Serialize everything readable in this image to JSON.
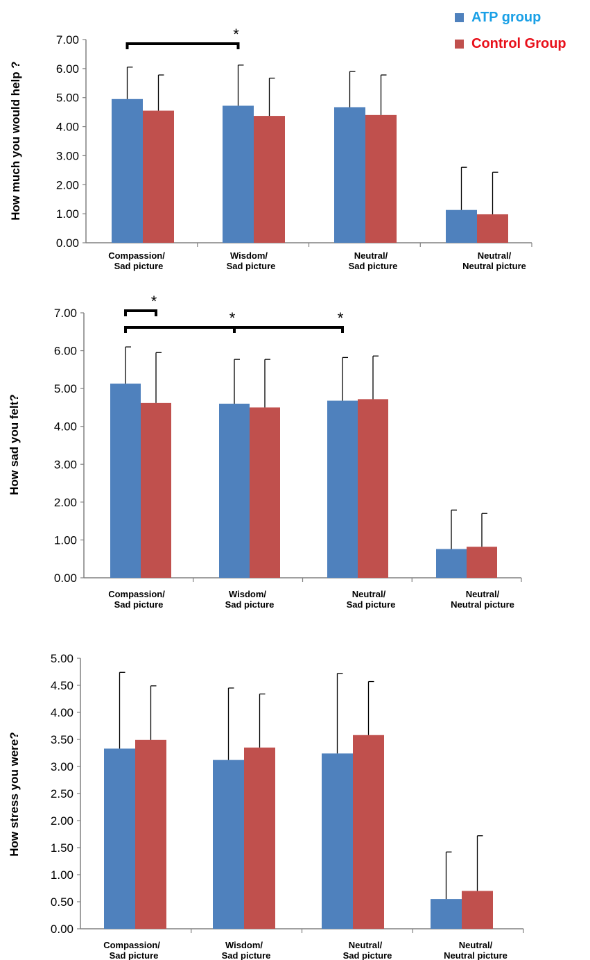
{
  "legend": {
    "items": [
      {
        "label": "ATP group",
        "color": "#4f81bd",
        "text_color": "#1aa0e6"
      },
      {
        "label": "Control Group",
        "color": "#c0504d",
        "text_color": "#e8101a"
      }
    ]
  },
  "chart_data": [
    {
      "type": "bar",
      "title": "",
      "xlabel": "",
      "ylabel": "How much you would help ?",
      "ylim": [
        0,
        7
      ],
      "yticks": [
        "0.00",
        "1.00",
        "2.00",
        "3.00",
        "4.00",
        "5.00",
        "6.00",
        "7.00"
      ],
      "categories": [
        [
          "Compassion/",
          "Sad picture"
        ],
        [
          "Wisdom/",
          "Sad picture"
        ],
        [
          "Neutral/",
          "Sad picture"
        ],
        [
          "Neutral/",
          "Neutral picture"
        ]
      ],
      "series": [
        {
          "name": "ATP group",
          "values": [
            4.95,
            4.72,
            4.67,
            1.13
          ],
          "errors": [
            1.1,
            1.4,
            1.23,
            1.47
          ]
        },
        {
          "name": "Control Group",
          "values": [
            4.55,
            4.37,
            4.4,
            0.98
          ],
          "errors": [
            1.23,
            1.3,
            1.38,
            1.45
          ]
        }
      ],
      "significance": [
        {
          "from_category": 0,
          "from_series": 0,
          "to_category": 1,
          "to_series": 0,
          "label": "*"
        }
      ]
    },
    {
      "type": "bar",
      "title": "",
      "xlabel": "",
      "ylabel": "How sad you felt?",
      "ylim": [
        0,
        7
      ],
      "yticks": [
        "0.00",
        "1.00",
        "2.00",
        "3.00",
        "4.00",
        "5.00",
        "6.00",
        "7.00"
      ],
      "categories": [
        [
          "Compassion/",
          "Sad picture"
        ],
        [
          "Wisdom/",
          "Sad picture"
        ],
        [
          "Neutral/",
          "Sad picture"
        ],
        [
          "Neutral/",
          "Neutral picture"
        ]
      ],
      "series": [
        {
          "name": "ATP group",
          "values": [
            5.13,
            4.6,
            4.68,
            0.76
          ],
          "errors": [
            0.97,
            1.17,
            1.14,
            1.03
          ]
        },
        {
          "name": "Control Group",
          "values": [
            4.62,
            4.5,
            4.72,
            0.82
          ],
          "errors": [
            1.33,
            1.27,
            1.14,
            0.88
          ]
        }
      ],
      "significance": [
        {
          "from_category": 0,
          "from_series": 0,
          "to_category": 0,
          "to_series": 1,
          "label": "*"
        },
        {
          "from_category": 0,
          "from_series": 0,
          "to_category": 1,
          "to_series": 0,
          "label": "*"
        },
        {
          "from_category": 0,
          "from_series": 0,
          "to_category": 2,
          "to_series": 0,
          "label": "*"
        }
      ]
    },
    {
      "type": "bar",
      "title": "",
      "xlabel": "",
      "ylabel": "How stress you were?",
      "ylim": [
        0,
        5
      ],
      "yticks": [
        "0.00",
        "0.50",
        "1.00",
        "1.50",
        "2.00",
        "2.50",
        "3.00",
        "3.50",
        "4.00",
        "4.50",
        "5.00"
      ],
      "categories": [
        [
          "Compassion/",
          "Sad picture"
        ],
        [
          "Wisdom/",
          "Sad picture"
        ],
        [
          "Neutral/",
          "Sad picture"
        ],
        [
          "Neutral/",
          "Neutral picture"
        ]
      ],
      "series": [
        {
          "name": "ATP group",
          "values": [
            3.33,
            3.12,
            3.24,
            0.55
          ],
          "errors": [
            1.41,
            1.33,
            1.48,
            0.87
          ]
        },
        {
          "name": "Control Group",
          "values": [
            3.49,
            3.35,
            3.58,
            0.7
          ],
          "errors": [
            1.0,
            0.99,
            0.99,
            1.02
          ]
        }
      ],
      "significance": []
    }
  ]
}
